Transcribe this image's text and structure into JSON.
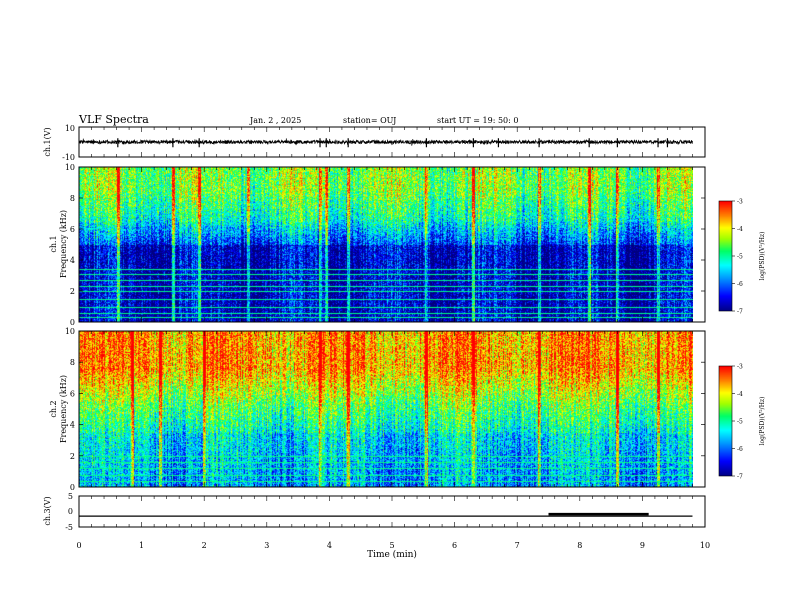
{
  "header": {
    "title": "VLF Spectra",
    "date": "Jan. 2 , 2025",
    "station": "station= OUJ",
    "start": "start UT = 19: 50: 0"
  },
  "colors": {
    "colormap": [
      "#000080",
      "#0000ff",
      "#00a0ff",
      "#00ffff",
      "#00ff60",
      "#a0ff00",
      "#ffff00",
      "#ff8000",
      "#ff0000",
      "#ffffff"
    ],
    "trace": "#000000"
  },
  "chart_data": [
    {
      "type": "line",
      "panel": "ch1",
      "ylabel": "ch.1(V)",
      "ylim": [
        -10,
        10
      ],
      "y_ticks": [
        "10",
        "-10"
      ],
      "x_range": [
        0,
        10
      ],
      "baseline": 0,
      "noise_amplitude": 1.2,
      "spike_times": [
        0.62,
        1.5,
        1.92,
        3.85,
        3.95,
        4.3,
        5.55,
        6.3,
        6.7,
        7.35,
        8.15,
        8.6,
        9.25,
        9.4
      ]
    },
    {
      "type": "heatmap",
      "panel": "ch1-spectrogram",
      "ylabel": "ch.1\nFrequency (kHz)",
      "y_ticks": [
        "0",
        "2",
        "4",
        "6",
        "8",
        "10"
      ],
      "ylim": [
        0,
        10
      ],
      "x_range": [
        0,
        9.8
      ],
      "colorbar": {
        "label": "log(PSD)(V²/Hz)",
        "ticks": [
          "-3",
          "-4",
          "-5",
          "-6",
          "-7"
        ],
        "range": [
          -7,
          -3
        ]
      },
      "horizontal_lines_khz": [
        0.3,
        0.6,
        1.0,
        1.5,
        2.0,
        2.3,
        2.7,
        3.1,
        3.4
      ],
      "bright_verticals_min": [
        0.62,
        1.5,
        1.92,
        2.7,
        3.85,
        3.95,
        4.3,
        5.55,
        6.3,
        7.35,
        8.15,
        8.6,
        9.25
      ],
      "profile": "low PSD below 6 kHz, rising toward upper band"
    },
    {
      "type": "heatmap",
      "panel": "ch2-spectrogram",
      "ylabel": "ch.2\nFrequency (kHz)",
      "y_ticks": [
        "0",
        "2",
        "4",
        "6",
        "8",
        "10"
      ],
      "ylim": [
        0,
        10
      ],
      "x_range": [
        0,
        9.8
      ],
      "colorbar": {
        "label": "log(PSD)(V²/Hz)",
        "ticks": [
          "-3",
          "-4",
          "-5",
          "-6",
          "-7"
        ],
        "range": [
          -7,
          -3
        ]
      },
      "horizontal_lines_khz": [
        0.4,
        0.8,
        1.2,
        1.6,
        2.0
      ],
      "bright_verticals_min": [
        0.85,
        1.3,
        2.0,
        3.85,
        4.3,
        5.55,
        6.3,
        7.35,
        8.6,
        9.25
      ],
      "profile": "high PSD above 6 kHz, moderate 3-6 kHz, lower below 3 kHz"
    },
    {
      "type": "line",
      "panel": "ch3",
      "ylabel": "ch.3(V)",
      "ylim": [
        -5,
        5
      ],
      "y_ticks": [
        "5",
        "0",
        "-5"
      ],
      "x_range": [
        0,
        9.8
      ],
      "level": -1.5,
      "thick_segment_min": [
        7.5,
        9.1
      ]
    }
  ],
  "xaxis": {
    "xlabel": "Time (min)",
    "ticks": [
      "0",
      "1",
      "2",
      "3",
      "4",
      "5",
      "6",
      "7",
      "8",
      "9",
      "10"
    ],
    "xlim": [
      0,
      10
    ]
  }
}
